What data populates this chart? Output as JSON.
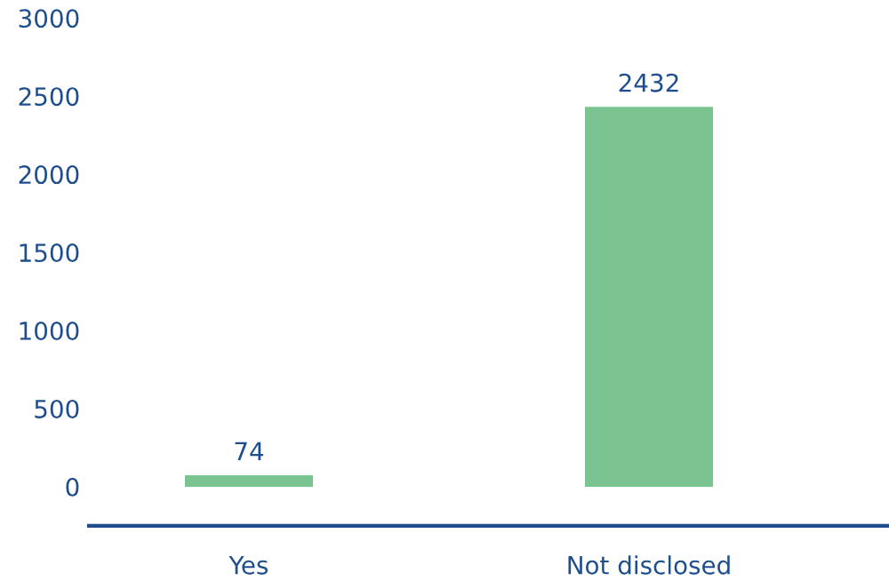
{
  "chart_data": {
    "type": "bar",
    "categories": [
      "Yes",
      "Not disclosed"
    ],
    "values": [
      74,
      2432
    ],
    "color": "#7bc492",
    "ylim": [
      -250,
      3000
    ],
    "yticks": [
      0,
      500,
      1000,
      1500,
      2000,
      2500,
      3000
    ],
    "data_labels": true,
    "grid": false
  }
}
